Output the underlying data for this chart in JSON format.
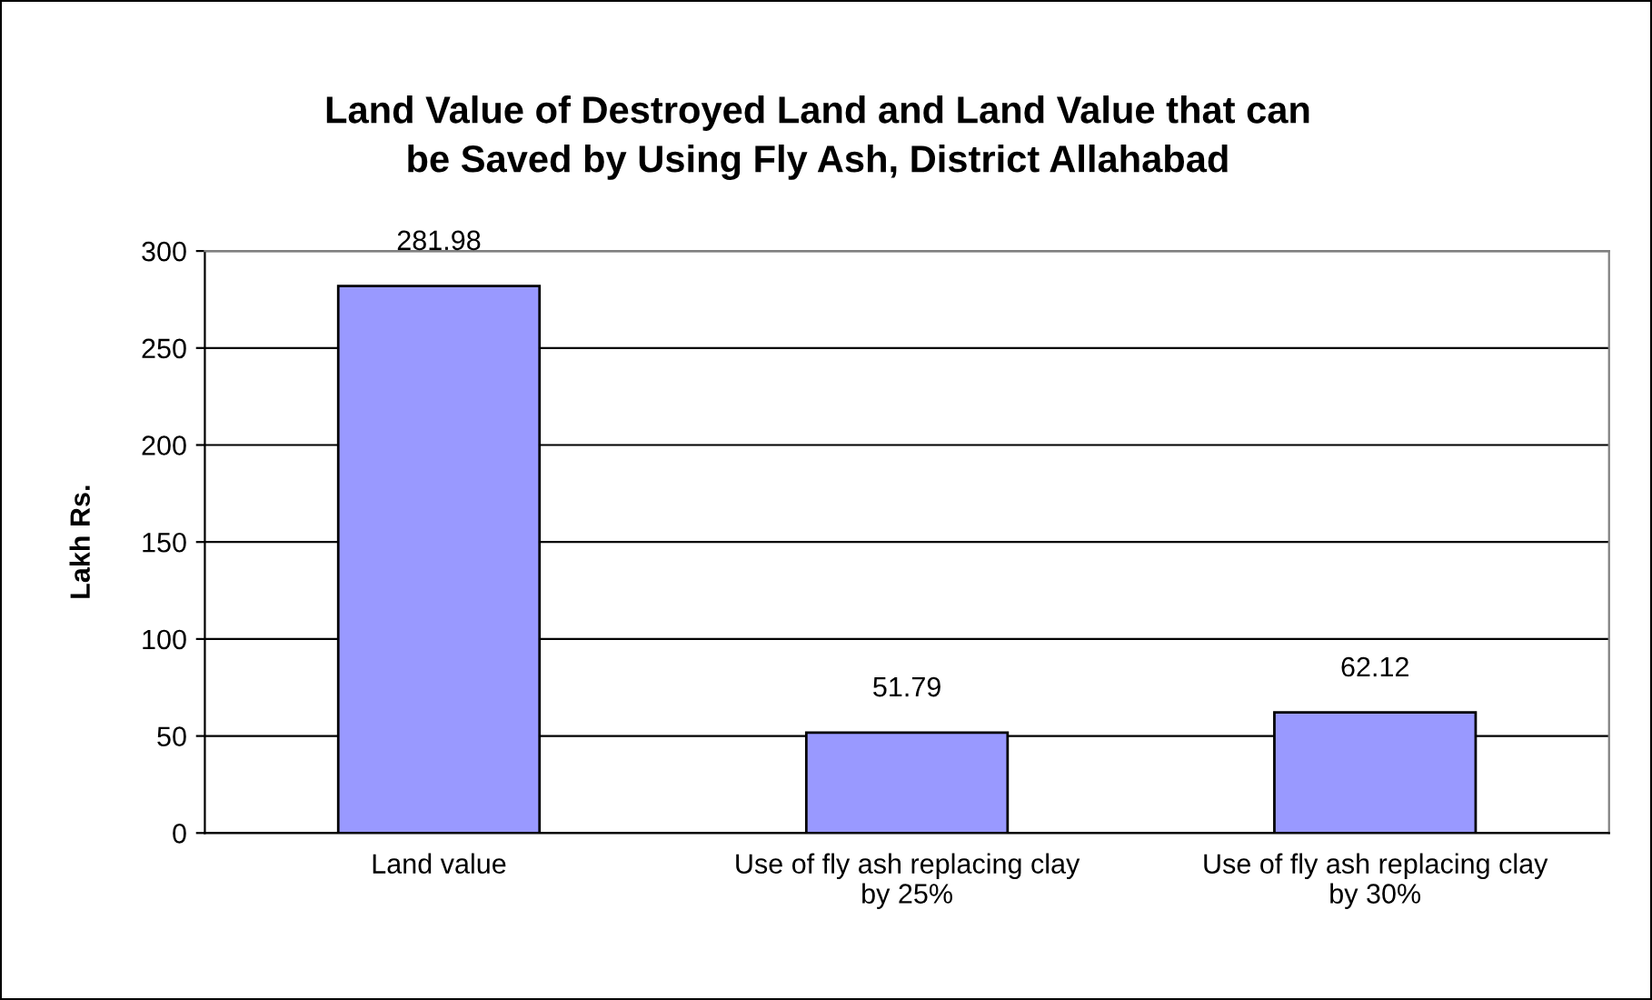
{
  "chart_data": {
    "type": "bar",
    "title": "Land Value of Destroyed Land and Land Value that can\nbe Saved by Using Fly Ash, District Allahabad",
    "ylabel": "Lakh Rs.",
    "categories": [
      "Land value",
      "Use of fly ash replacing clay\nby 25%",
      "Use of fly ash replacing clay\nby 30%"
    ],
    "values": [
      281.98,
      51.79,
      62.12
    ],
    "color": "#9999ff",
    "ylim": [
      0,
      300
    ],
    "yticks": [
      0,
      50,
      100,
      150,
      200,
      250,
      300
    ],
    "grid": "y",
    "data_labels": true
  }
}
